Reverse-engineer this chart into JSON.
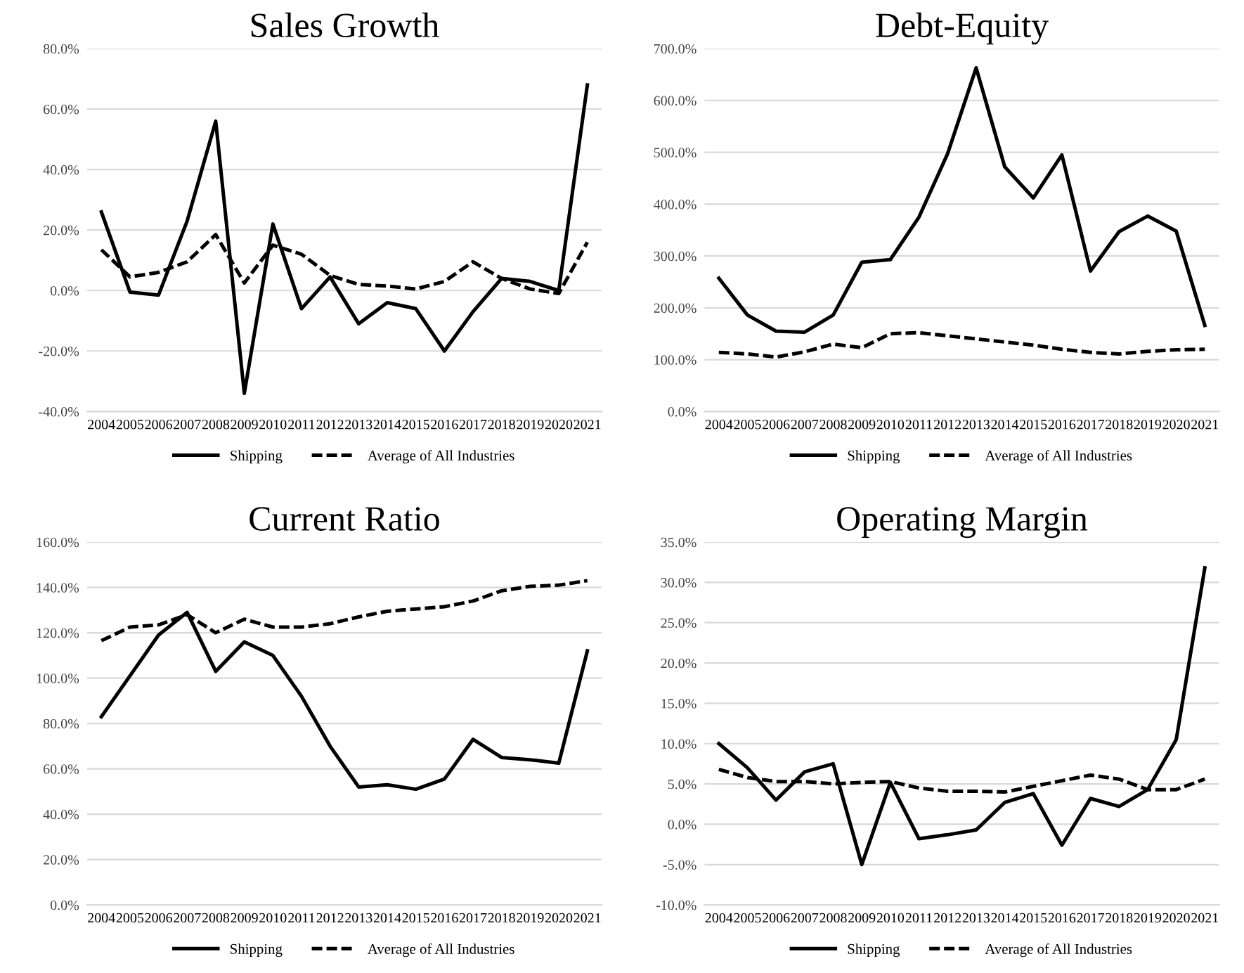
{
  "chart_data": [
    {
      "type": "line",
      "title": "Sales Growth",
      "categories": [
        "2004",
        "2005",
        "2006",
        "2007",
        "2008",
        "2009",
        "2010",
        "2011",
        "2012",
        "2013",
        "2014",
        "2015",
        "2016",
        "2017",
        "2018",
        "2019",
        "2020",
        "2021"
      ],
      "series": [
        {
          "name": "Shipping",
          "color": "#000000",
          "line_style": "solid",
          "values": [
            26,
            -0.5,
            -1.5,
            23,
            56,
            -34,
            22,
            -6,
            4.5,
            -11,
            -4,
            -6,
            -20,
            -7,
            4,
            3,
            0,
            68
          ]
        },
        {
          "name": "Average of All Industries",
          "color": "#000000",
          "line_style": "dashed",
          "values": [
            13.5,
            4.5,
            6,
            9.5,
            18.5,
            2.5,
            15,
            12,
            5,
            2,
            1.5,
            0.5,
            3,
            9.5,
            4,
            0.5,
            -1,
            16
          ]
        }
      ],
      "ylim": [
        -40,
        80
      ],
      "yticks": [
        {
          "value": -40,
          "label": "-40.0%"
        },
        {
          "value": -20,
          "label": "-20.0%"
        },
        {
          "value": 0,
          "label": "0.0%"
        },
        {
          "value": 20,
          "label": "20.0%"
        },
        {
          "value": 40,
          "label": "40.0%"
        },
        {
          "value": 60,
          "label": "60.0%"
        },
        {
          "value": 80,
          "label": "80.0%"
        }
      ],
      "grid": "y",
      "legend": "bottom",
      "marker": "none"
    },
    {
      "type": "line",
      "title": "Debt-Equity",
      "categories": [
        "2004",
        "2005",
        "2006",
        "2007",
        "2008",
        "2009",
        "2010",
        "2011",
        "2012",
        "2013",
        "2014",
        "2015",
        "2016",
        "2017",
        "2018",
        "2019",
        "2020",
        "2021"
      ],
      "series": [
        {
          "name": "Shipping",
          "color": "#000000",
          "line_style": "solid",
          "values": [
            257,
            186,
            155,
            153,
            186,
            288,
            293,
            375,
            497,
            663,
            472,
            412,
            495,
            271,
            347,
            377,
            348,
            166
          ]
        },
        {
          "name": "Average of All Industries",
          "color": "#000000",
          "line_style": "dashed",
          "values": [
            114,
            111,
            105,
            115,
            130,
            123,
            150,
            152,
            146,
            140,
            134,
            128,
            120,
            114,
            111,
            116,
            119,
            120
          ]
        }
      ],
      "ylim": [
        0,
        700
      ],
      "yticks": [
        {
          "value": 0,
          "label": "0.0%"
        },
        {
          "value": 100,
          "label": "100.0%"
        },
        {
          "value": 200,
          "label": "200.0%"
        },
        {
          "value": 300,
          "label": "300.0%"
        },
        {
          "value": 400,
          "label": "400.0%"
        },
        {
          "value": 500,
          "label": "500.0%"
        },
        {
          "value": 600,
          "label": "600.0%"
        },
        {
          "value": 700,
          "label": "700.0%"
        }
      ],
      "grid": "y",
      "legend": "bottom",
      "marker": "none"
    },
    {
      "type": "line",
      "title": "Current Ratio",
      "categories": [
        "2004",
        "2005",
        "2006",
        "2007",
        "2008",
        "2009",
        "2010",
        "2011",
        "2012",
        "2013",
        "2014",
        "2015",
        "2016",
        "2017",
        "2018",
        "2019",
        "2020",
        "2021"
      ],
      "series": [
        {
          "name": "Shipping",
          "color": "#000000",
          "line_style": "solid",
          "values": [
            83,
            101,
            119,
            129,
            103,
            116,
            110,
            92,
            70,
            52,
            53,
            51,
            55.5,
            73,
            65,
            64,
            62.5,
            112
          ]
        },
        {
          "name": "Average of All Industries",
          "color": "#000000",
          "line_style": "dashed",
          "values": [
            116.5,
            122.5,
            123.5,
            128,
            120,
            126,
            122.5,
            122.5,
            124,
            127,
            129.5,
            130.5,
            131.5,
            134,
            138.5,
            140.5,
            141,
            143
          ]
        }
      ],
      "ylim": [
        0,
        160
      ],
      "yticks": [
        {
          "value": 0,
          "label": "0.0%"
        },
        {
          "value": 20,
          "label": "20.0%"
        },
        {
          "value": 40,
          "label": "40.0%"
        },
        {
          "value": 60,
          "label": "60.0%"
        },
        {
          "value": 80,
          "label": "80.0%"
        },
        {
          "value": 100,
          "label": "100.0%"
        },
        {
          "value": 120,
          "label": "120.0%"
        },
        {
          "value": 140,
          "label": "140.0%"
        },
        {
          "value": 160,
          "label": "160.0%"
        }
      ],
      "grid": "y",
      "legend": "bottom",
      "marker": "none"
    },
    {
      "type": "line",
      "title": "Operating Margin",
      "categories": [
        "2004",
        "2005",
        "2006",
        "2007",
        "2008",
        "2009",
        "2010",
        "2011",
        "2012",
        "2013",
        "2014",
        "2015",
        "2016",
        "2017",
        "2018",
        "2019",
        "2020",
        "2021"
      ],
      "series": [
        {
          "name": "Shipping",
          "color": "#000000",
          "line_style": "solid",
          "values": [
            10,
            7,
            3,
            6.5,
            7.5,
            -5,
            5.2,
            -1.8,
            -1.3,
            -0.7,
            2.7,
            3.8,
            -2.6,
            3.2,
            2.2,
            4.3,
            10.5,
            31.8
          ]
        },
        {
          "name": "Average of All Industries",
          "color": "#000000",
          "line_style": "dashed",
          "values": [
            6.8,
            5.8,
            5.3,
            5.3,
            5.0,
            5.2,
            5.3,
            4.5,
            4.1,
            4.1,
            4.0,
            4.7,
            5.4,
            6.1,
            5.6,
            4.3,
            4.3,
            5.6
          ]
        }
      ],
      "ylim": [
        -10,
        35
      ],
      "yticks": [
        {
          "value": -10,
          "label": "-10.0%"
        },
        {
          "value": -5,
          "label": "-5.0%"
        },
        {
          "value": 0,
          "label": "0.0%"
        },
        {
          "value": 5,
          "label": "5.0%"
        },
        {
          "value": 10,
          "label": "10.0%"
        },
        {
          "value": 15,
          "label": "15.0%"
        },
        {
          "value": 20,
          "label": "20.0%"
        },
        {
          "value": 25,
          "label": "25.0%"
        },
        {
          "value": 30,
          "label": "30.0%"
        },
        {
          "value": 35,
          "label": "35.0%"
        }
      ],
      "grid": "y",
      "legend": "bottom",
      "marker": "none"
    }
  ]
}
